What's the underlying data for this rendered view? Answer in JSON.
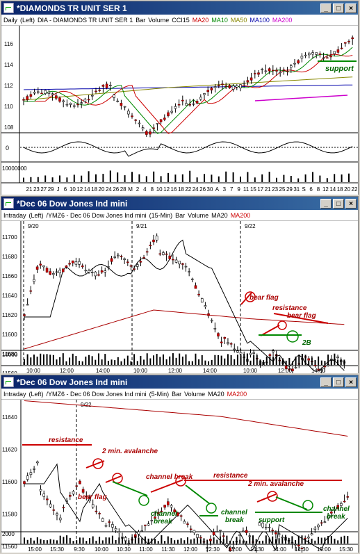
{
  "windows": [
    {
      "title": "*DIAMONDS TR UNIT SER 1",
      "header": [
        "Daily",
        "(Left)",
        "DIA - DIAMONDS TR UNIT SER 1",
        "Bar",
        "Volume",
        "CCI15"
      ],
      "mas": [
        {
          "label": "MA20",
          "color": "#cc0000"
        },
        {
          "label": "MA10",
          "color": "#008800"
        },
        {
          "label": "MA50",
          "color": "#888800"
        },
        {
          "label": "MA100",
          "color": "#0000aa"
        },
        {
          "label": "MA200",
          "color": "#cc00cc"
        }
      ],
      "yticks": [
        "116",
        "114",
        "112",
        "110",
        "108"
      ],
      "cci_tick": "0",
      "vol_tick": "10000000",
      "xticks": [
        "21",
        "23",
        "27",
        "29",
        "J",
        "6",
        "10",
        "12",
        "14",
        "18",
        "20",
        "24",
        "26",
        "28",
        "M",
        "2",
        "4",
        "8",
        "10",
        "12",
        "16",
        "18",
        "22",
        "24",
        "26",
        "30",
        "A",
        "3",
        "7",
        "9",
        "11",
        "15",
        "17",
        "21",
        "23",
        "25",
        "29",
        "31",
        "S",
        "6",
        "8",
        "12",
        "14",
        "18",
        "20",
        "22"
      ],
      "annotations": {
        "support": "support"
      }
    },
    {
      "title": "*Dec 06  Dow Jones Ind mini",
      "header": [
        "Intraday",
        "(Left)",
        "/YMZ6 - Dec 06  Dow Jones Ind mini",
        "(15-Min)",
        "Bar",
        "Volume"
      ],
      "mas": [
        {
          "label": "MA20",
          "color": "#000000"
        },
        {
          "label": "MA200",
          "color": "#cc0000"
        }
      ],
      "dates": [
        "9/20",
        "9/21",
        "9/22"
      ],
      "yticks": [
        "11700",
        "11680",
        "11660",
        "11640",
        "11620",
        "11600",
        "11580",
        "11560"
      ],
      "vol_tick": "10000",
      "xticks": [
        "10:00",
        "12:00",
        "14:00",
        "10:00",
        "12:00",
        "14:00",
        "10:00",
        "12:00",
        "14:00"
      ],
      "annotations": {
        "bear_flag_1": "bear flag",
        "resistance": "resistance",
        "bear_flag_2": "bear flag",
        "two_b": "2B"
      }
    },
    {
      "title": "*Dec 06  Dow Jones Ind mini",
      "header": [
        "Intraday",
        "(Left)",
        "/YMZ6 - Dec 06  Dow Jones Ind mini",
        "(5-Min)",
        "Bar",
        "Volume"
      ],
      "mas": [
        {
          "label": "MA20",
          "color": "#000000"
        },
        {
          "label": "MA200",
          "color": "#cc0000"
        }
      ],
      "dates": [
        "9/22"
      ],
      "yticks": [
        "11640",
        "11620",
        "11600",
        "11580",
        "11560"
      ],
      "vol_tick": "2000",
      "xticks": [
        "15:00",
        "15:30",
        "9:30",
        "10:00",
        "10:30",
        "11:00",
        "11:30",
        "12:00",
        "12:30",
        "13:00",
        "13:30",
        "14:00",
        "14:30",
        "15:00",
        "15:30"
      ],
      "annotations": {
        "resistance_1": "resistance",
        "avalanche_1": "2 min. avalanche",
        "bear_flag": "bear flag",
        "channel_break_1": "channel break",
        "channel_break_2": "channel\nbreak",
        "channel_break_3": "channel\nbreak",
        "resistance_2": "resistance",
        "avalanche_2": "2 min. avalanche",
        "support": "support",
        "channel_break_4": "channel\nbreak"
      }
    }
  ]
}
